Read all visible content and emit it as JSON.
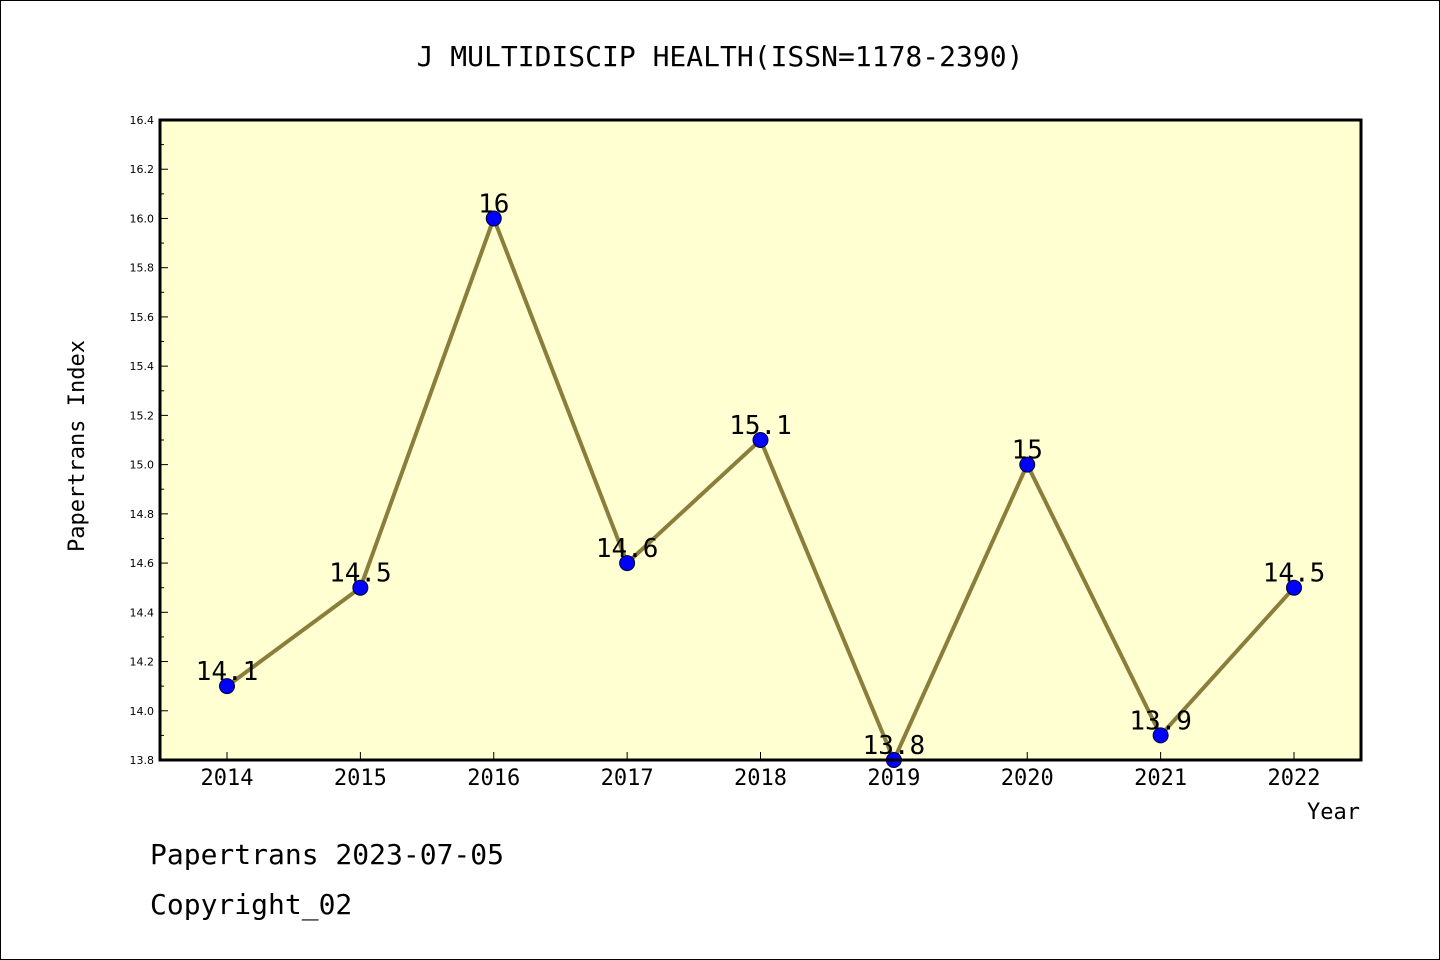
{
  "chart_data": {
    "type": "line",
    "title": "J MULTIDISCIP HEALTH(ISSN=1178-2390)",
    "xlabel": "Year",
    "ylabel": "Papertrans Index",
    "categories": [
      "2014",
      "2015",
      "2016",
      "2017",
      "2018",
      "2019",
      "2020",
      "2021",
      "2022"
    ],
    "values": [
      14.1,
      14.5,
      16,
      14.6,
      15.1,
      13.8,
      15,
      13.9,
      14.5
    ],
    "value_labels": [
      "14.1",
      "14.5",
      "16",
      "14.6",
      "15.1",
      "13.8",
      "15",
      "13.9",
      "14.5"
    ],
    "ylim": [
      13.8,
      16.4
    ],
    "yticks": [
      "13.8",
      "14.0",
      "14.2",
      "14.4",
      "14.6",
      "14.8",
      "15.0",
      "15.2",
      "15.4",
      "15.6",
      "15.8",
      "16.0",
      "16.2",
      "16.4"
    ],
    "grid": false,
    "legend": "none"
  },
  "footer": {
    "line1": "Papertrans 2023-07-05",
    "line2": "Copyright_02"
  },
  "colors": {
    "plot_background": "#ffffd2",
    "line": "#8b7d3a",
    "marker": "#0000ff",
    "axis": "#000000"
  }
}
